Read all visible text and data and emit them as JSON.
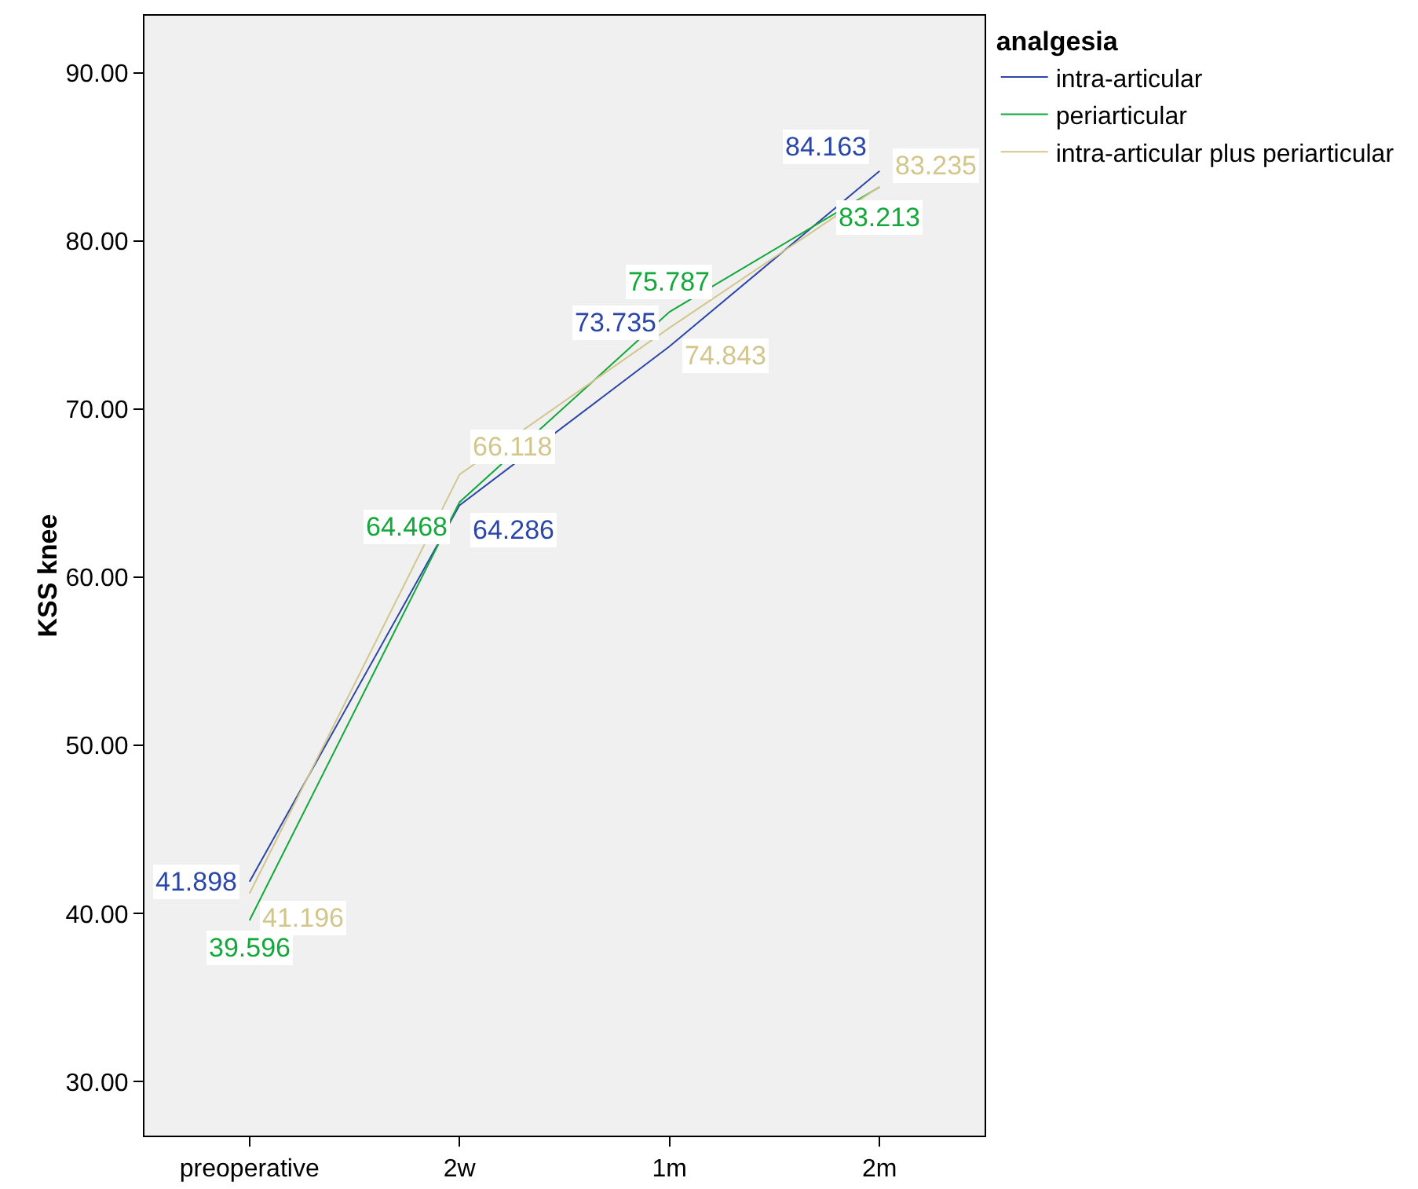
{
  "chart_data": {
    "type": "line",
    "ylabel": "KSS knee",
    "legend_title": "analgesia",
    "categories": [
      "preoperative",
      "2w",
      "1m",
      "2m"
    ],
    "series": [
      {
        "name": "intra-articular",
        "color": "#2a46a8",
        "values": [
          41.898,
          64.286,
          73.735,
          84.163
        ]
      },
      {
        "name": "periarticular",
        "color": "#12a83a",
        "values": [
          39.596,
          64.468,
          75.787,
          83.213
        ]
      },
      {
        "name": "intra-articular plus periarticular",
        "color": "#d2c68c",
        "values": [
          41.196,
          66.118,
          74.843,
          83.235
        ]
      }
    ],
    "ylim": [
      26.8,
      93.4
    ],
    "yticks": [
      {
        "value": 30,
        "label": "30.00"
      },
      {
        "value": 40,
        "label": "40.00"
      },
      {
        "value": 50,
        "label": "50.00"
      },
      {
        "value": 60,
        "label": "60.00"
      },
      {
        "value": 70,
        "label": "70.00"
      },
      {
        "value": 80,
        "label": "80.00"
      },
      {
        "value": 90,
        "label": "90.00"
      }
    ],
    "data_labels": true,
    "grid": false,
    "legend": "top right",
    "marker": "none",
    "line_style": "solid"
  }
}
